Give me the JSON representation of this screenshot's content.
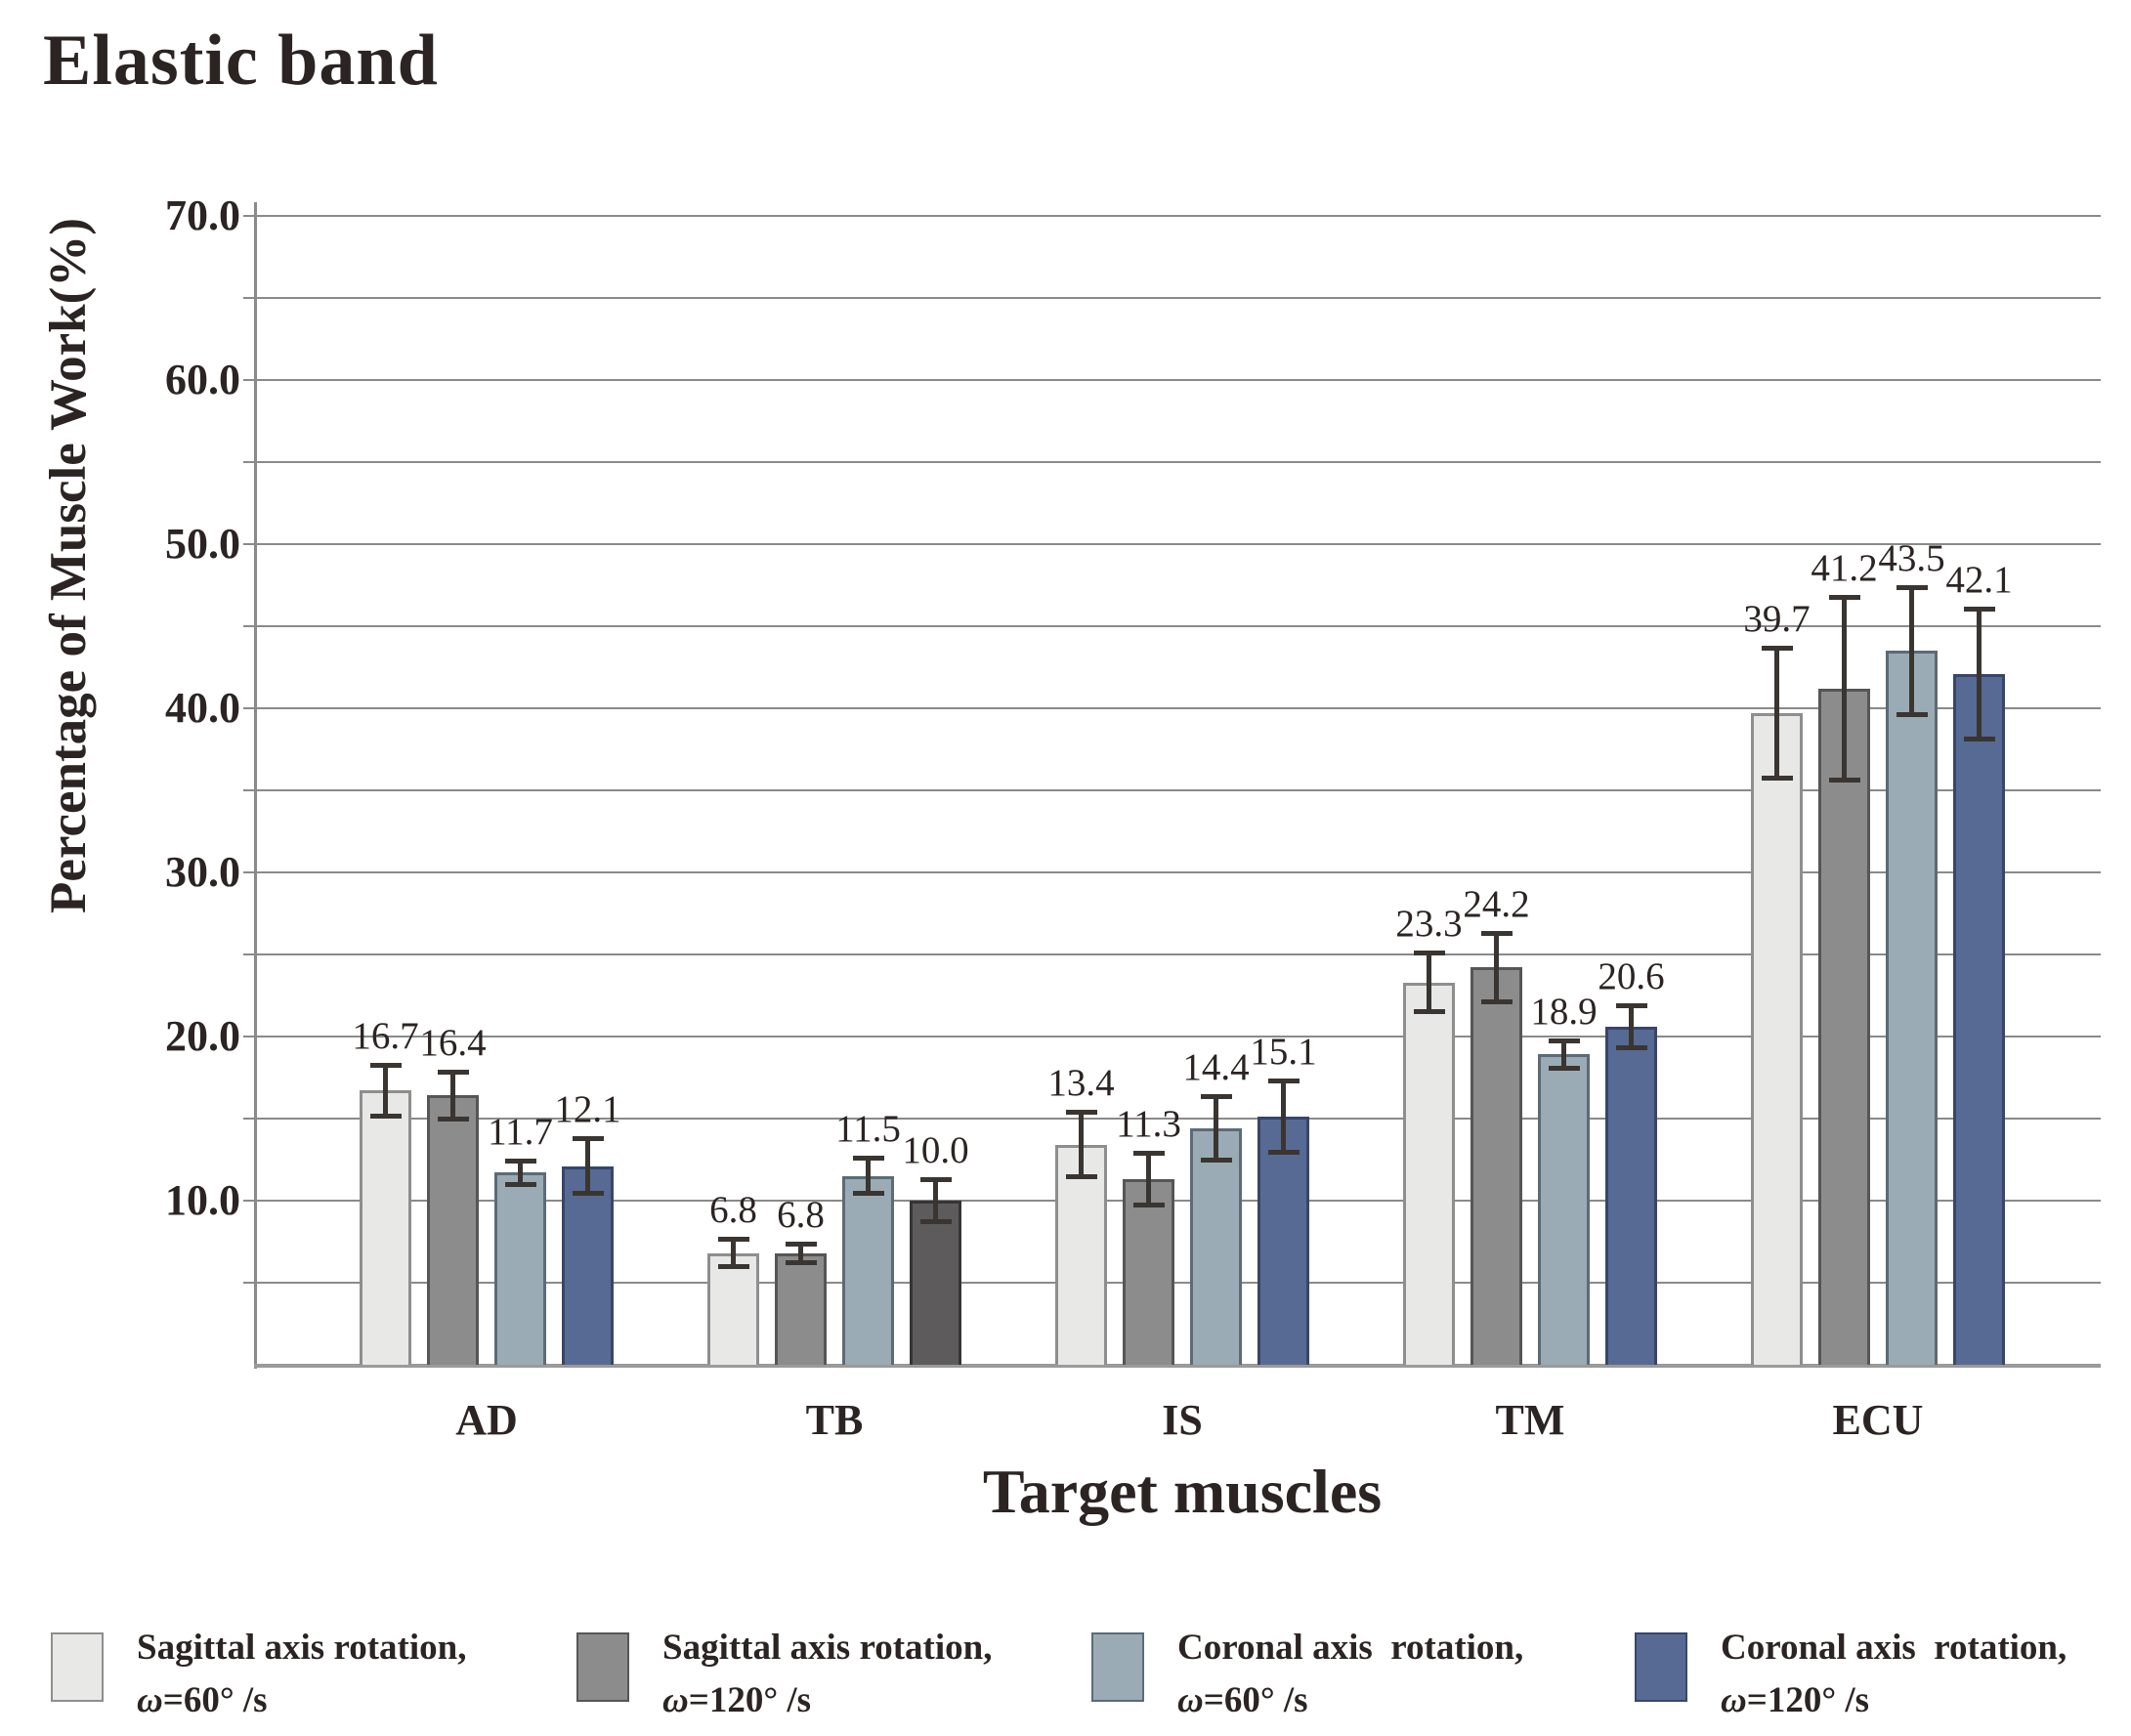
{
  "title": "Elastic band",
  "y_axis": {
    "label": "Percentage of Muscle Work(%)",
    "ticks": [
      {
        "v": 70,
        "label": "70.0"
      },
      {
        "v": 60,
        "label": "60.0"
      },
      {
        "v": 50,
        "label": "50.0"
      },
      {
        "v": 40,
        "label": "40.0"
      },
      {
        "v": 30,
        "label": "30.0"
      },
      {
        "v": 20,
        "label": "20.0"
      },
      {
        "v": 10,
        "label": "10.0"
      }
    ]
  },
  "x_axis": {
    "label": "Target muscles",
    "categories": [
      "AD",
      "TB",
      "IS",
      "TM",
      "ECU"
    ]
  },
  "legend": {
    "items": [
      {
        "line1": "Sagittal axis rotation,",
        "line2": "ω=60° /s",
        "color": "#e8e8e6",
        "border": "#8e8e8e"
      },
      {
        "line1": "Sagittal axis rotation,",
        "line2": "ω=120° /s",
        "color": "#8d8c8c",
        "border": "#565656"
      },
      {
        "line1": "Coronal axis  rotation,",
        "line2": "ω=60° /s",
        "color": "#9aabb5",
        "border": "#5c6b75"
      },
      {
        "line1": "Coronal axis  rotation,",
        "line2": "ω=120° /s",
        "color": "#566a94",
        "border": "#39456b"
      }
    ]
  },
  "chart_data": {
    "type": "bar",
    "title": "Elastic band",
    "xlabel": "Target muscles",
    "ylabel": "Percentage of Muscle Work(%)",
    "ylim": [
      0,
      70
    ],
    "grid_step": 5,
    "label_step": 10,
    "grid": true,
    "legend_position": "bottom",
    "categories": [
      "AD",
      "TB",
      "IS",
      "TM",
      "ECU"
    ],
    "series": [
      {
        "name": "Sagittal axis rotation, ω=60°/s",
        "color": "#e8e8e6",
        "border": "#8e8e8e",
        "values": [
          16.7,
          6.8,
          13.4,
          23.3,
          39.7
        ],
        "errors": [
          1.6,
          0.85,
          2.0,
          1.8,
          4.0
        ]
      },
      {
        "name": "Sagittal axis rotation, ω=120°/s",
        "color": "#8d8c8c",
        "border": "#565656",
        "values": [
          16.4,
          6.8,
          11.3,
          24.2,
          41.2
        ],
        "errors": [
          1.45,
          0.6,
          1.6,
          2.1,
          5.6
        ]
      },
      {
        "name": "Coronal axis rotation, ω=60°/s",
        "color": "#9aabb5",
        "border": "#5c6b75",
        "values": [
          11.7,
          11.5,
          14.4,
          18.9,
          43.5
        ],
        "errors": [
          0.75,
          1.1,
          1.95,
          0.85,
          3.9
        ]
      },
      {
        "name": "Coronal axis rotation, ω=120°/s",
        "color": "#566a94",
        "border": "#39456b",
        "values": [
          12.1,
          10.0,
          15.1,
          20.6,
          42.1
        ],
        "errors": [
          1.7,
          1.3,
          2.2,
          1.3,
          4.0
        ]
      }
    ],
    "bar_color_overrides": [
      {
        "series": 3,
        "category": "TB",
        "color": "#5d5b5b",
        "border": "#353535"
      }
    ],
    "value_labels": [
      [
        "16.7",
        "6.8",
        "13.4",
        "23.3",
        "39.7"
      ],
      [
        "16.4",
        "6.8",
        "11.3",
        "24.2",
        "41.2"
      ],
      [
        "11.7",
        "11.5",
        "14.4",
        "18.9",
        "43.5"
      ],
      [
        "12.1",
        "10.0",
        "15.1",
        "20.6",
        "42.1"
      ]
    ]
  }
}
